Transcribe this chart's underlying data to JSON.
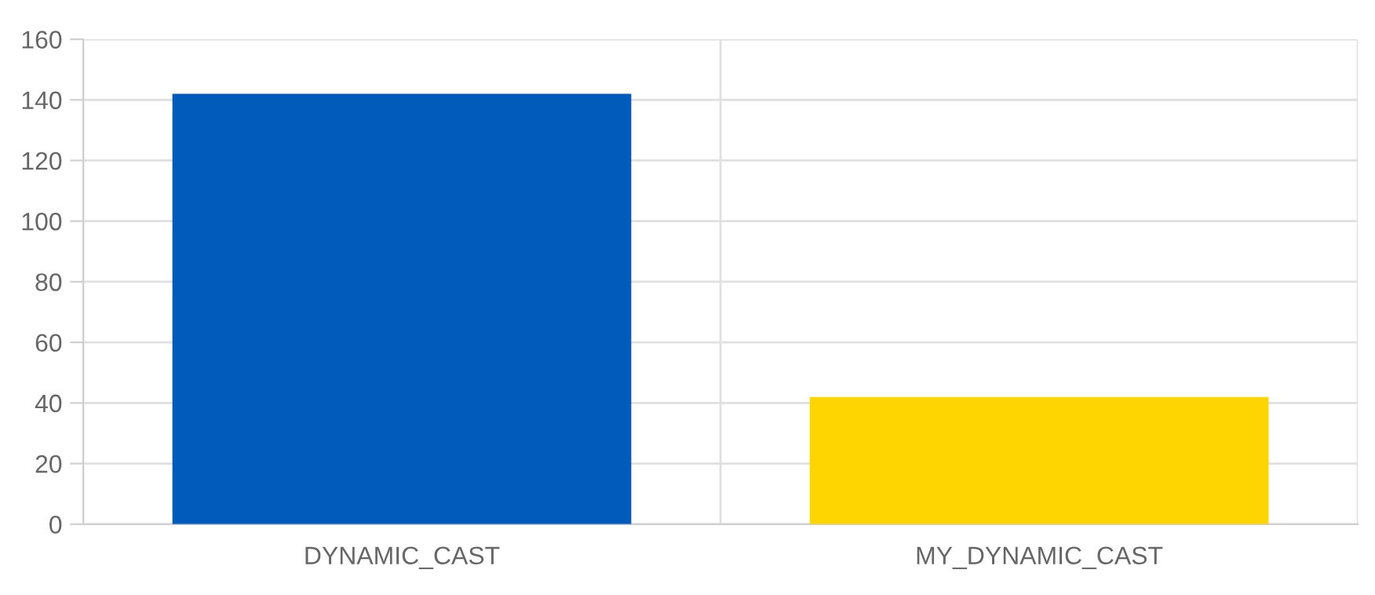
{
  "chart_data": {
    "type": "bar",
    "categories": [
      "DYNAMIC_CAST",
      "MY_DYNAMIC_CAST"
    ],
    "values": [
      142,
      42
    ],
    "colors": [
      "#005bbb",
      "#ffd500"
    ],
    "ylim": [
      0,
      160
    ],
    "yticks": [
      0,
      20,
      40,
      60,
      80,
      100,
      120,
      140,
      160
    ],
    "grid": true
  }
}
